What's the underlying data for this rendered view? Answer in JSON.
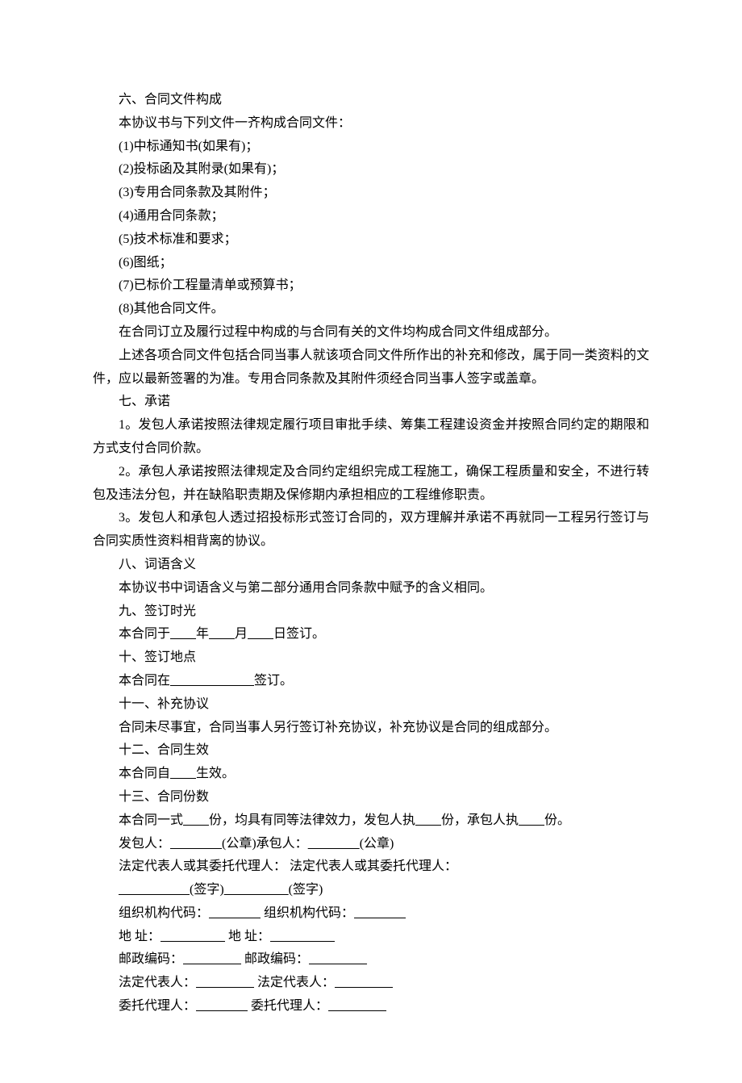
{
  "s6": {
    "title": "六、合同文件构成",
    "intro": "本协议书与下列文件一齐构成合同文件：",
    "items": [
      "(1)中标通知书(如果有)；",
      "(2)投标函及其附录(如果有)；",
      "(3)专用合同条款及其附件；",
      "(4)通用合同条款；",
      "(5)技术标准和要求；",
      "(6)图纸；",
      "(7)已标价工程量清单或预算书；",
      "(8)其他合同文件。"
    ],
    "p1": "在合同订立及履行过程中构成的与合同有关的文件均构成合同文件组成部分。",
    "p2": "上述各项合同文件包括合同当事人就该项合同文件所作出的补充和修改，属于同一类资料的文件，应以最新签署的为准。专用合同条款及其附件须经合同当事人签字或盖章。"
  },
  "s7": {
    "title": "七、承诺",
    "p1": "1。发包人承诺按照法律规定履行项目审批手续、筹集工程建设资金并按照合同约定的期限和方式支付合同价款。",
    "p2": "2。承包人承诺按照法律规定及合同约定组织完成工程施工，确保工程质量和安全，不进行转包及违法分包，并在缺陷职责期及保修期内承担相应的工程维修职责。",
    "p3": "3。发包人和承包人透过招投标形式签订合同的，双方理解并承诺不再就同一工程另行签订与合同实质性资料相背离的协议。"
  },
  "s8": {
    "title": "八、词语含义",
    "p1": "本协议书中词语含义与第二部分通用合同条款中赋予的含义相同。"
  },
  "s9": {
    "title": "九、签订时光",
    "pre": "本合同于",
    "y": "年",
    "m": "月",
    "d": "日签订。",
    "blank": "        "
  },
  "s10": {
    "title": "十、签订地点",
    "pre": "本合同在",
    "post": "签订。",
    "blank": "                          "
  },
  "s11": {
    "title": "十一、补充协议",
    "p1": "合同未尽事宜，合同当事人另行签订补充协议，补充协议是合同的组成部分。"
  },
  "s12": {
    "title": "十二、合同生效",
    "pre": "本合同自",
    "post": "生效。",
    "blank": "        "
  },
  "s13": {
    "title": "十三、合同份数",
    "pre": "本合同一式",
    "mid1": "份，均具有同等法律效力，发包人执",
    "mid2": "份，承包人执",
    "post": "份。",
    "blank": "        "
  },
  "sig": {
    "l1a": "发包人：",
    "l1b": "(公章)承包人：",
    "l1c": "(公章)",
    "l2": "法定代表人或其委托代理人：  法定代表人或其委托代理人：",
    "l3a": "(签字)",
    "l3b": "(签字)",
    "l4a": "组织机构代码：",
    "l4b": " 组织机构代码：",
    "l5a": "地 址：",
    "l5b": " 地 址：",
    "l6a": "邮政编码：",
    "l6b": " 邮政编码：",
    "l7a": "法定代表人：",
    "l7b": "  法定代表人：",
    "l8a": "委托代理人：",
    "l8b": " 委托代理人：",
    "blank16": "                ",
    "blank18": "                  ",
    "blank20": "                    ",
    "blank22": "                      "
  }
}
